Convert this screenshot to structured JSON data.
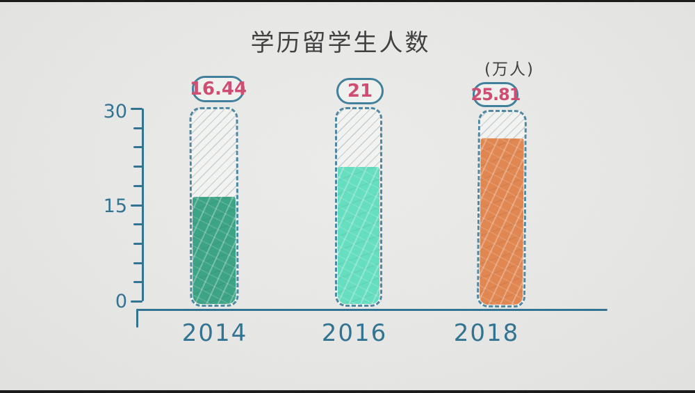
{
  "chart_data": {
    "type": "bar",
    "title": "学历留学生人数",
    "unit_label": "(万人)",
    "unit": "万人",
    "categories": [
      "2014",
      "2016",
      "2018"
    ],
    "values": [
      16.44,
      21,
      25.81
    ],
    "value_labels": [
      "16.44",
      "21",
      "25.81"
    ],
    "ylim": [
      0,
      30
    ],
    "ytick_labels": [
      "30",
      "15",
      "0"
    ],
    "ytick_values": [
      30,
      15,
      0
    ],
    "minor_tick_step": 3,
    "grid": false,
    "legend": false,
    "style": "hand-drawn",
    "bar_fill_colors": [
      "#38a383",
      "#63dfc0",
      "#e2854e"
    ],
    "bar_outline_color": "#4a86a2",
    "axis_color": "#2e7191",
    "value_label_color": "#d04a70",
    "title_color": "#3d3d3d",
    "background_color": "#e8e8e6"
  }
}
